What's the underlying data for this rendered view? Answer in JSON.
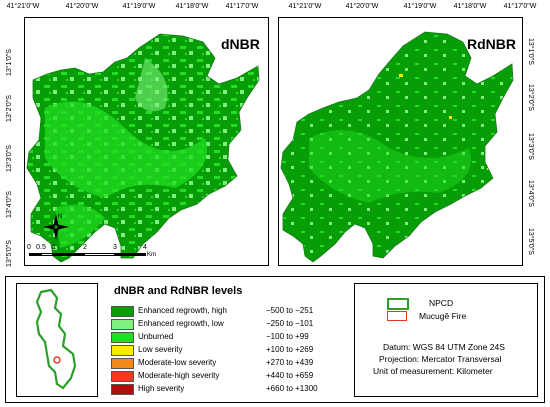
{
  "colors": {
    "enhanced_high": "#069d06",
    "enhanced_low": "#7df07d",
    "unburned": "#22dd22",
    "low": "#ffea00",
    "mod_low": "#f28a1a",
    "mod_high": "#ee3c1a",
    "high": "#b30c0c",
    "npcd_outline": "#2aa02a",
    "fire_outline": "#e03a1a"
  },
  "maps": {
    "left": {
      "title": "dNBR",
      "top_ticks": [
        "41°21'0\"W",
        "41°20'0\"W",
        "41°19'0\"W",
        "41°18'0\"W",
        "41°17'0\"W"
      ],
      "left_ticks": [
        "13°1'0\"S",
        "13°2'0\"S",
        "13°3'0\"S",
        "13°4'0\"S",
        "13°5'0\"S"
      ]
    },
    "right": {
      "title": "RdNBR",
      "top_ticks": [
        "41°21'0\"W",
        "41°20'0\"W",
        "41°19'0\"W",
        "41°18'0\"W",
        "41°17'0\"W"
      ],
      "right_ticks": [
        "13°1'0\"S",
        "13°2'0\"S",
        "13°3'0\"S",
        "13°4'0\"S",
        "13°5'0\"S"
      ]
    }
  },
  "north_arrow": "N",
  "scale_bar": {
    "labels": [
      "0",
      "0.5",
      "1",
      "2",
      "3",
      "4"
    ],
    "unit": "Km"
  },
  "legend": {
    "title": "dNBR and RdNBR levels",
    "items": [
      {
        "label": "Enhanced regrowth, high",
        "range": "−500 to −251",
        "color": "#069d06"
      },
      {
        "label": "Enhanced regrowth, low",
        "range": "−250 to −101",
        "color": "#7df07d"
      },
      {
        "label": "Unburned",
        "range": "−100 to +99",
        "color": "#22dd22"
      },
      {
        "label": "Low severity",
        "range": "+100 to +269",
        "color": "#ffea00"
      },
      {
        "label": "Moderate-low severity",
        "range": "+270 to +439",
        "color": "#f28a1a"
      },
      {
        "label": "Moderate-high severity",
        "range": "+440 to +659",
        "color": "#ee3c1a"
      },
      {
        "label": "High severity",
        "range": "+660 to +1300",
        "color": "#b30c0c"
      }
    ]
  },
  "boundaries": {
    "npcd": "NPCD",
    "fire": "Mucugê Fire"
  },
  "info": {
    "datum": "Datum: WGS 84 UTM Zone 24S",
    "projection": "Projection: Mercator Transversal",
    "unit": "Unit of measurement: Kilometer"
  }
}
